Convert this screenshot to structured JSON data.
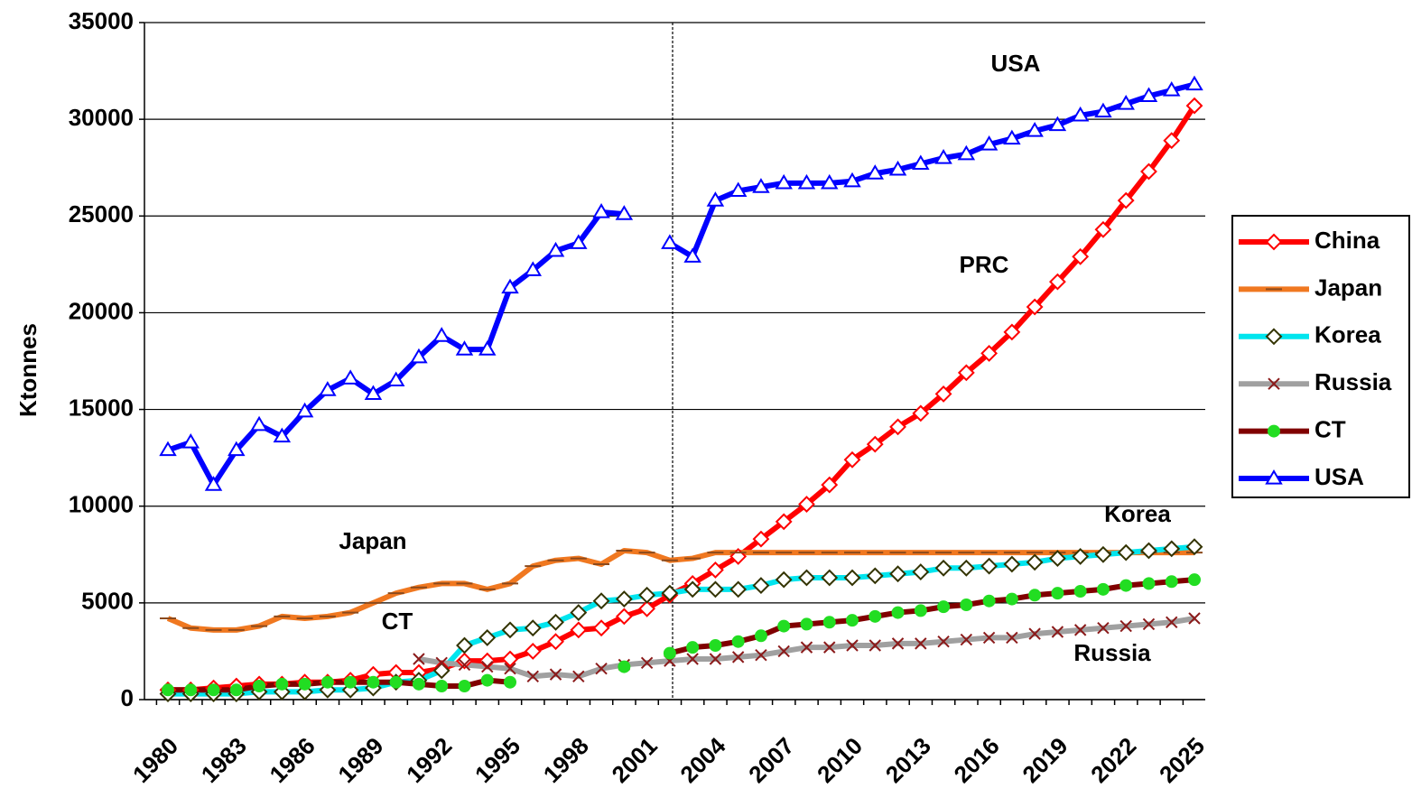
{
  "chart_data": {
    "type": "line",
    "y_label": "Ktonnes",
    "categories": [
      "1980",
      null,
      null,
      "1983",
      null,
      null,
      "1986",
      null,
      null,
      "1989",
      null,
      null,
      "1992",
      null,
      null,
      "1995",
      null,
      null,
      "1998",
      null,
      null,
      "2001",
      null,
      null,
      "2004",
      null,
      null,
      "2007",
      null,
      null,
      "2010",
      null,
      null,
      "2013",
      null,
      null,
      "2016",
      null,
      null,
      "2019",
      null,
      null,
      "2022",
      null,
      null,
      "2025"
    ],
    "ylim": [
      0,
      35000
    ],
    "yticks": [
      0,
      5000,
      10000,
      15000,
      20000,
      25000,
      30000,
      35000
    ],
    "grid": true,
    "legend": "right",
    "series": [
      {
        "name": "China",
        "color": "#ff0000",
        "marker": "diamond",
        "marker_color": "#ff0000",
        "values": [
          500,
          500,
          600,
          700,
          800,
          800,
          900,
          900,
          1000,
          1300,
          1400,
          1400,
          1600,
          2000,
          2000,
          2100,
          2500,
          3000,
          3600,
          3700,
          4300,
          4700,
          5400,
          6000,
          6700,
          7400,
          8300,
          9200,
          10100,
          11100,
          12400,
          13200,
          14100,
          14800,
          15800,
          16900,
          17900,
          19000,
          20300,
          21600,
          22900,
          24300,
          25800,
          27300,
          28900,
          30700
        ]
      },
      {
        "name": "Japan",
        "color": "#f07820",
        "marker": "dash",
        "marker_color": "#8b4a1c",
        "values": [
          4200,
          3700,
          3600,
          3600,
          3800,
          4300,
          4200,
          4300,
          4500,
          5000,
          5500,
          5800,
          6000,
          6000,
          5700,
          6000,
          6900,
          7200,
          7300,
          7000,
          7700,
          7600,
          7200,
          7300,
          7600,
          7600,
          7600,
          7600,
          7600,
          7600,
          7600,
          7600,
          7600,
          7600,
          7600,
          7600,
          7600,
          7600,
          7600,
          7600,
          7600,
          7600,
          7600,
          7600,
          7600,
          7600
        ]
      },
      {
        "name": "Korea",
        "color": "#00e5ee",
        "marker": "diamond",
        "marker_color": "#333300",
        "values": [
          300,
          300,
          300,
          300,
          400,
          400,
          400,
          500,
          500,
          600,
          900,
          1000,
          1500,
          2800,
          3200,
          3600,
          3700,
          4000,
          4500,
          5100,
          5200,
          5400,
          5500,
          5700,
          5700,
          5700,
          5900,
          6200,
          6300,
          6300,
          6300,
          6400,
          6500,
          6600,
          6800,
          6800,
          6900,
          7000,
          7100,
          7300,
          7400,
          7500,
          7600,
          7700,
          7800,
          7900
        ]
      },
      {
        "name": "Russia",
        "color": "#a0a0a0",
        "marker": "x",
        "marker_color": "#8b1a1a",
        "values": [
          null,
          null,
          null,
          null,
          null,
          null,
          null,
          null,
          null,
          null,
          null,
          2100,
          1900,
          1800,
          1700,
          1600,
          1200,
          1300,
          1200,
          1600,
          1800,
          1900,
          2000,
          2100,
          2100,
          2200,
          2300,
          2500,
          2700,
          2700,
          2800,
          2800,
          2900,
          2900,
          3000,
          3100,
          3200,
          3200,
          3400,
          3500,
          3600,
          3700,
          3800,
          3900,
          4000,
          4200
        ]
      },
      {
        "name": "CT",
        "color": "#800000",
        "marker": "circle",
        "marker_color": "#22dd22",
        "values": [
          500,
          500,
          500,
          500,
          700,
          800,
          800,
          900,
          900,
          900,
          900,
          800,
          700,
          700,
          1000,
          900,
          null,
          null,
          null,
          null,
          1700,
          null,
          2400,
          2700,
          2800,
          3000,
          3300,
          3800,
          3900,
          4000,
          4100,
          4300,
          4500,
          4600,
          4800,
          4900,
          5100,
          5200,
          5400,
          5500,
          5600,
          5700,
          5900,
          6000,
          6100,
          6200
        ]
      },
      {
        "name": "USA",
        "color": "#0000ff",
        "marker": "triangle",
        "marker_color": "#0000ff",
        "values": [
          12900,
          13300,
          11100,
          12900,
          14200,
          13600,
          14900,
          16000,
          16600,
          15800,
          16500,
          17700,
          18800,
          18100,
          18100,
          21300,
          22200,
          23200,
          23600,
          25200,
          25100,
          null,
          23600,
          22900,
          25800,
          26300,
          26500,
          26700,
          26700,
          26700,
          26800,
          27200,
          27400,
          27700,
          28000,
          28200,
          28700,
          29000,
          29400,
          29700,
          30200,
          30400,
          30800,
          31200,
          31500,
          31800
        ]
      }
    ],
    "annotations": [
      "USA",
      "PRC",
      "Japan",
      "Korea",
      "CT",
      "Russia"
    ]
  }
}
